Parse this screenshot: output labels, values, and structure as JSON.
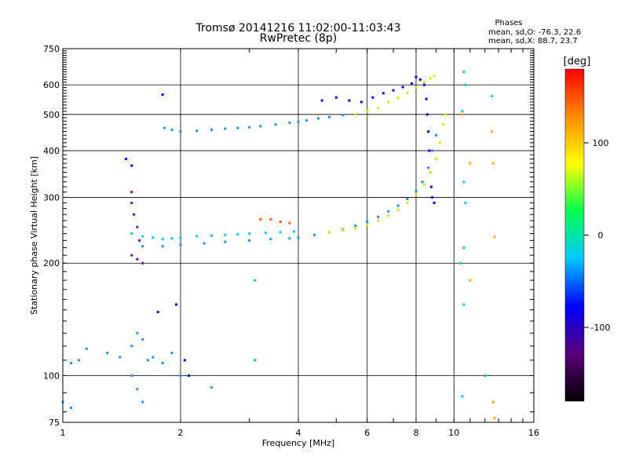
{
  "chart_data": {
    "type": "scatter",
    "title": "Tromsø 20141216 11:02:00-11:03:43",
    "subtitle": "RwPretec (8p)",
    "phase_info": {
      "heading": "Phases",
      "line_o": "mean, sd,O: -76.3, 22.6",
      "line_x": "mean, sd,X: 88.7, 23.7"
    },
    "xlabel": "Frequency [MHz]",
    "ylabel": "Stationary phase Virtual Height [km]",
    "x_scale": "log",
    "y_scale": "log",
    "xlim": [
      1,
      16
    ],
    "ylim": [
      75,
      750
    ],
    "x_ticks": [
      1,
      2,
      4,
      6,
      8,
      10,
      16
    ],
    "x_tick_labels": [
      "1",
      "2",
      "4",
      "6",
      "8",
      "10",
      "16"
    ],
    "y_ticks": [
      75,
      100,
      200,
      300,
      400,
      500,
      600,
      750
    ],
    "y_tick_labels": [
      "75",
      "100",
      "200",
      "300",
      "400",
      "500",
      "600",
      "750"
    ],
    "grid": true,
    "colorbar": {
      "label": "[deg]",
      "min": -180,
      "max": 180,
      "ticks": [
        100,
        0,
        -100
      ],
      "tick_labels": [
        "100",
        "0",
        "-100"
      ],
      "placement": "right",
      "colors": [
        "#000000",
        "#5a007a",
        "#0000ff",
        "#00c8ff",
        "#00ff50",
        "#ffff00",
        "#ff8c00",
        "#ff0000"
      ]
    },
    "series": [
      {
        "color": "#1e90ff",
        "values": [
          [
            1.82,
            460
          ],
          [
            1.9,
            455
          ],
          [
            2.0,
            450
          ],
          [
            2.2,
            452
          ],
          [
            2.4,
            455
          ],
          [
            2.6,
            458
          ],
          [
            2.8,
            460
          ],
          [
            3.0,
            462
          ],
          [
            3.2,
            465
          ],
          [
            3.5,
            470
          ],
          [
            3.8,
            475
          ],
          [
            4.0,
            478
          ],
          [
            4.2,
            482
          ],
          [
            4.5,
            488
          ],
          [
            4.8,
            492
          ],
          [
            5.2,
            498
          ]
        ]
      },
      {
        "color": "#0000ff",
        "values": [
          [
            4.6,
            545
          ],
          [
            5.0,
            555
          ],
          [
            5.4,
            545
          ],
          [
            5.8,
            540
          ],
          [
            6.2,
            555
          ],
          [
            6.6,
            570
          ],
          [
            7.0,
            580
          ],
          [
            7.4,
            592
          ],
          [
            7.8,
            605
          ],
          [
            8.0,
            630
          ],
          [
            8.2,
            620
          ]
        ]
      },
      {
        "color": "#c8f000",
        "values": [
          [
            5.6,
            500
          ],
          [
            6.0,
            510
          ],
          [
            6.4,
            520
          ],
          [
            6.8,
            540
          ],
          [
            7.2,
            555
          ],
          [
            7.6,
            570
          ],
          [
            8.0,
            590
          ],
          [
            8.4,
            610
          ],
          [
            8.7,
            625
          ],
          [
            8.9,
            635
          ]
        ]
      },
      {
        "color": "#0000ff",
        "values": [
          [
            8.4,
            600
          ],
          [
            8.5,
            550
          ],
          [
            8.55,
            500
          ],
          [
            8.6,
            450
          ],
          [
            8.65,
            400
          ],
          [
            8.7,
            350
          ],
          [
            8.75,
            320
          ],
          [
            8.8,
            300
          ],
          [
            8.9,
            290
          ]
        ]
      },
      {
        "color": "#00c8ff",
        "values": [
          [
            1.5,
            240
          ],
          [
            1.6,
            236
          ],
          [
            1.7,
            234
          ],
          [
            1.8,
            232
          ],
          [
            1.9,
            233
          ],
          [
            2.0,
            234
          ],
          [
            2.2,
            236
          ],
          [
            2.4,
            237
          ],
          [
            2.6,
            238
          ],
          [
            2.8,
            239
          ],
          [
            3.0,
            240
          ],
          [
            3.3,
            241
          ],
          [
            3.6,
            242
          ],
          [
            3.9,
            243
          ]
        ]
      },
      {
        "color": "#1e90ff",
        "values": [
          [
            1.6,
            222
          ],
          [
            1.8,
            222
          ],
          [
            2.0,
            224
          ],
          [
            2.3,
            226
          ],
          [
            2.6,
            228
          ],
          [
            3.0,
            230
          ],
          [
            3.4,
            232
          ],
          [
            3.8,
            233
          ],
          [
            4.0,
            234
          ],
          [
            4.4,
            238
          ],
          [
            4.8,
            242
          ],
          [
            5.2,
            246
          ],
          [
            5.6,
            252
          ],
          [
            6.0,
            258
          ],
          [
            6.4,
            266
          ],
          [
            6.8,
            275
          ],
          [
            7.2,
            285
          ],
          [
            7.6,
            297
          ],
          [
            8.0,
            312
          ],
          [
            8.3,
            330
          ],
          [
            8.6,
            360
          ],
          [
            8.8,
            400
          ],
          [
            9.0,
            440
          ]
        ]
      },
      {
        "color": "#c8f000",
        "values": [
          [
            4.8,
            242
          ],
          [
            5.2,
            245
          ],
          [
            5.6,
            248
          ],
          [
            6.0,
            253
          ],
          [
            6.4,
            260
          ],
          [
            6.8,
            268
          ],
          [
            7.2,
            278
          ],
          [
            7.6,
            290
          ],
          [
            8.0,
            305
          ],
          [
            8.4,
            325
          ],
          [
            8.7,
            350
          ],
          [
            9.0,
            380
          ],
          [
            9.2,
            420
          ],
          [
            9.4,
            470
          ],
          [
            9.5,
            500
          ]
        ]
      },
      {
        "color": "#ff6000",
        "values": [
          [
            3.2,
            262
          ],
          [
            3.4,
            262
          ],
          [
            3.6,
            258
          ],
          [
            3.8,
            256
          ]
        ]
      },
      {
        "color": "#6a0dad",
        "values": [
          [
            1.5,
            310
          ],
          [
            1.5,
            290
          ],
          [
            1.52,
            270
          ],
          [
            1.55,
            250
          ],
          [
            1.57,
            230
          ],
          [
            1.5,
            210
          ],
          [
            1.55,
            205
          ],
          [
            1.6,
            200
          ]
        ]
      },
      {
        "color": "#1e90ff",
        "values": [
          [
            1.05,
            108
          ],
          [
            1.1,
            110
          ],
          [
            1.15,
            118
          ],
          [
            1.3,
            115
          ],
          [
            1.4,
            112
          ],
          [
            1.5,
            120
          ],
          [
            1.55,
            130
          ],
          [
            1.6,
            125
          ],
          [
            1.65,
            110
          ],
          [
            1.7,
            112
          ],
          [
            1.8,
            108
          ],
          [
            1.9,
            115
          ],
          [
            2.0,
            100
          ],
          [
            1.5,
            100
          ],
          [
            1.55,
            92
          ],
          [
            1.6,
            85
          ],
          [
            1.05,
            82
          ],
          [
            1.0,
            85
          ]
        ]
      },
      {
        "color": "#0000ff",
        "values": [
          [
            1.45,
            380
          ],
          [
            1.5,
            365
          ],
          [
            1.8,
            565
          ],
          [
            1.95,
            155
          ],
          [
            1.75,
            148
          ],
          [
            2.05,
            110
          ],
          [
            2.1,
            100
          ]
        ]
      },
      {
        "color": "#00c8ff",
        "values": [
          [
            10.6,
            650
          ],
          [
            10.7,
            600
          ],
          [
            10.5,
            510
          ],
          [
            12.5,
            560
          ],
          [
            10.6,
            330
          ],
          [
            10.7,
            290
          ],
          [
            10.6,
            220
          ],
          [
            10.4,
            200
          ],
          [
            10.6,
            155
          ],
          [
            10.5,
            88
          ],
          [
            12.0,
            100
          ]
        ]
      },
      {
        "color": "#ffaa00",
        "values": [
          [
            10.5,
            500
          ],
          [
            11.0,
            370
          ],
          [
            11.0,
            180
          ],
          [
            12.5,
            450
          ],
          [
            12.6,
            370
          ],
          [
            12.7,
            235
          ],
          [
            12.6,
            85
          ],
          [
            12.7,
            77
          ]
        ]
      },
      {
        "color": "#00d850",
        "values": [
          [
            3.1,
            180
          ],
          [
            3.1,
            110
          ],
          [
            2.4,
            93
          ]
        ]
      }
    ]
  }
}
